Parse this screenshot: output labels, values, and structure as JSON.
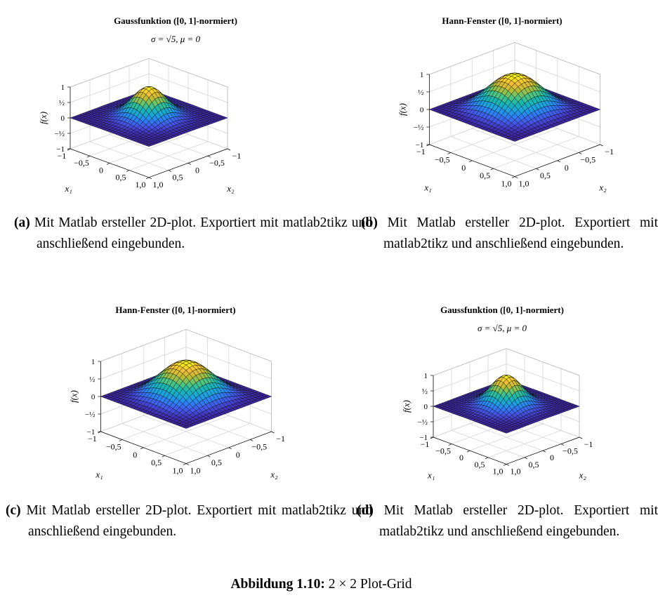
{
  "figure_caption": {
    "label": "Abbildung 1.10:",
    "text": "2 × 2 Plot-Grid"
  },
  "colormap": [
    "#3e26a8",
    "#4653e8",
    "#2d7ff9",
    "#1ba5dc",
    "#15b8b1",
    "#53c67c",
    "#b6bc32",
    "#f6bd38",
    "#f9fb15"
  ],
  "chart_data": [
    {
      "type": "surface",
      "title": "Gaussfunktion ([0, 1]-normiert)",
      "subtitle": "σ = √5, μ = 0",
      "function": "gauss",
      "sigma_label": "√5",
      "mu": 0,
      "xlabel": "x₁",
      "ylabel": "x₂",
      "zlabel": "f(x)",
      "xlim": [
        -1,
        1
      ],
      "ylim": [
        -1,
        1
      ],
      "zlim": [
        -1,
        1
      ],
      "x_ticks": [
        "−1",
        "−0,5",
        "0",
        "0,5",
        "1,0"
      ],
      "y_ticks": [
        "−1",
        "−0,5",
        "0",
        "0,5",
        "1,0"
      ],
      "z_ticks": [
        "1",
        "½",
        "0",
        "−½",
        "−1"
      ],
      "grid": true,
      "caption": {
        "label": "(a)",
        "text": "Mit Matlab ersteller 2D-plot. Exportiert mit matlab2tikz und anschließend eingebunden."
      }
    },
    {
      "type": "surface",
      "title": "Hann-Fenster ([0, 1]-normiert)",
      "subtitle": "",
      "function": "hann",
      "xlabel": "x₁",
      "ylabel": "x₂",
      "zlabel": "f(x)",
      "xlim": [
        -1,
        1
      ],
      "ylim": [
        -1,
        1
      ],
      "zlim": [
        -1,
        1
      ],
      "x_ticks": [
        "−1",
        "−0,5",
        "0",
        "0,5",
        "1,0"
      ],
      "y_ticks": [
        "−1",
        "−0,5",
        "0",
        "0,5",
        "1,0"
      ],
      "z_ticks": [
        "1",
        "½",
        "0",
        "−½",
        "−1"
      ],
      "grid": true,
      "caption": {
        "label": "(b)",
        "text": "Mit Matlab ersteller 2D-plot. Exportiert mit matlab2tikz und anschließend eingebunden."
      }
    },
    {
      "type": "surface",
      "title": "Hann-Fenster ([0, 1]-normiert)",
      "subtitle": "",
      "function": "hann",
      "xlabel": "x₁",
      "ylabel": "x₂",
      "zlabel": "f(x)",
      "xlim": [
        -1,
        1
      ],
      "ylim": [
        -1,
        1
      ],
      "zlim": [
        -1,
        1
      ],
      "x_ticks": [
        "−1",
        "−0,5",
        "0",
        "0,5",
        "1,0"
      ],
      "y_ticks": [
        "−1",
        "−0,5",
        "0",
        "0,5",
        "1,0"
      ],
      "z_ticks": [
        "1",
        "½",
        "0",
        "−½",
        "−1"
      ],
      "grid": true,
      "caption": {
        "label": "(c)",
        "text": "Mit Matlab ersteller 2D-plot. Exportiert mit matlab2tikz und anschließend eingebunden."
      }
    },
    {
      "type": "surface",
      "title": "Gaussfunktion ([0, 1]-normiert)",
      "subtitle": "σ = √5, μ = 0",
      "function": "gauss",
      "sigma_label": "√5",
      "mu": 0,
      "xlabel": "x₁",
      "ylabel": "x₂",
      "zlabel": "f(x)",
      "xlim": [
        -1,
        1
      ],
      "ylim": [
        -1,
        1
      ],
      "zlim": [
        -1,
        1
      ],
      "x_ticks": [
        "−1",
        "−0,5",
        "0",
        "0,5",
        "1,0"
      ],
      "y_ticks": [
        "−1",
        "−0,5",
        "0",
        "0,5",
        "1,0"
      ],
      "z_ticks": [
        "1",
        "½",
        "0",
        "−½",
        "−1"
      ],
      "grid": true,
      "caption": {
        "label": "(d)",
        "text": "Mit Matlab ersteller 2D-plot. Exportiert mit matlab2tikz und anschließend eingebunden."
      }
    }
  ]
}
